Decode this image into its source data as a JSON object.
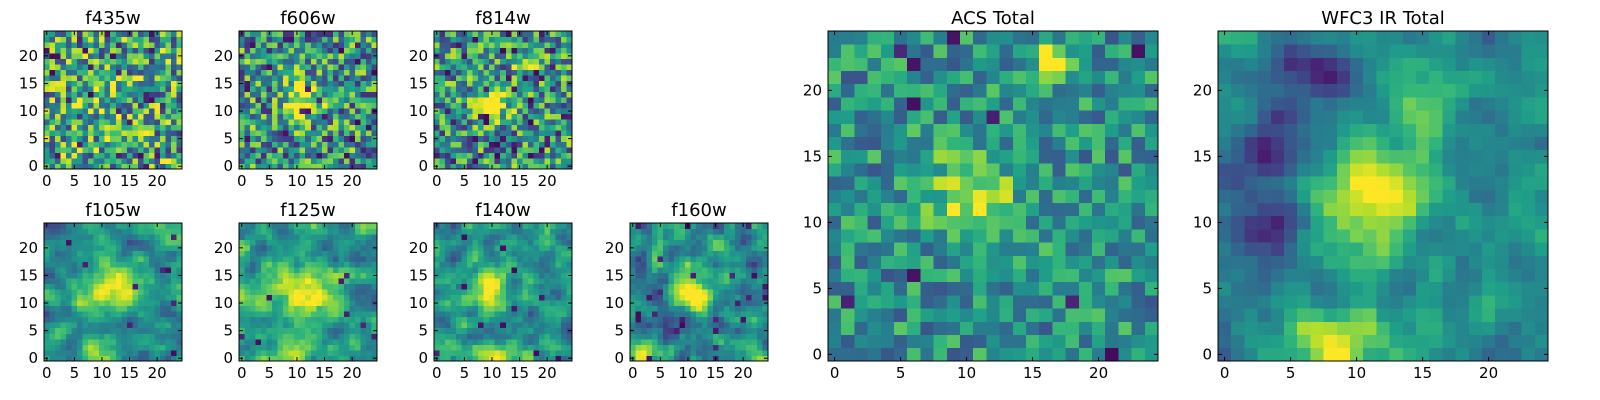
{
  "chart_data": [
    {
      "type": "heatmap",
      "title": "f435w",
      "xlim": [
        -0.5,
        24.5
      ],
      "ylim": [
        -0.5,
        24.5
      ],
      "xticks": [
        0,
        5,
        10,
        15,
        20
      ],
      "yticks": [
        0,
        5,
        10,
        15,
        20
      ],
      "colormap": "viridis",
      "grid_size": [
        25,
        25
      ],
      "noise": 0.42,
      "smooth": 0,
      "signal": 0.2,
      "hot_pixels": 0.04,
      "sources": [
        {
          "x": 11,
          "y": 12.5,
          "amp": 0.18,
          "sigma": 2.5
        }
      ],
      "base": 0.58
    },
    {
      "type": "heatmap",
      "title": "f606w",
      "xlim": [
        -0.5,
        24.5
      ],
      "ylim": [
        -0.5,
        24.5
      ],
      "xticks": [
        0,
        5,
        10,
        15,
        20
      ],
      "yticks": [
        0,
        5,
        10,
        15,
        20
      ],
      "colormap": "viridis",
      "grid_size": [
        25,
        25
      ],
      "noise": 0.4,
      "smooth": 0,
      "hot_pixels": 0.04,
      "sources": [
        {
          "x": 11,
          "y": 12,
          "amp": 0.55,
          "sigma": 2.2
        }
      ],
      "base": 0.52
    },
    {
      "type": "heatmap",
      "title": "f814w",
      "xlim": [
        -0.5,
        24.5
      ],
      "ylim": [
        -0.5,
        24.5
      ],
      "xticks": [
        0,
        5,
        10,
        15,
        20
      ],
      "yticks": [
        0,
        5,
        10,
        15,
        20
      ],
      "colormap": "viridis",
      "grid_size": [
        25,
        25
      ],
      "noise": 0.38,
      "smooth": 0,
      "hot_pixels": 0.05,
      "sources": [
        {
          "x": 10,
          "y": 11.5,
          "amp": 0.55,
          "sigma": 2.3
        },
        {
          "x": 16,
          "y": 19,
          "amp": 0.35,
          "sigma": 1.6
        }
      ],
      "base": 0.52
    },
    {
      "type": "heatmap",
      "title": "f105w",
      "xlim": [
        -0.5,
        24.5
      ],
      "ylim": [
        -0.5,
        24.5
      ],
      "xticks": [
        0,
        5,
        10,
        15,
        20
      ],
      "yticks": [
        0,
        5,
        10,
        15,
        20
      ],
      "colormap": "viridis",
      "grid_size": [
        25,
        25
      ],
      "noise": 0.25,
      "smooth": 1,
      "hot_pixels": 0.01,
      "sources": [
        {
          "x": 11,
          "y": 12,
          "amp": 0.5,
          "sigma": 3.5
        },
        {
          "x": 10,
          "y": 1,
          "amp": 0.3,
          "sigma": 2.5
        }
      ],
      "base": 0.5
    },
    {
      "type": "heatmap",
      "title": "f125w",
      "xlim": [
        -0.5,
        24.5
      ],
      "ylim": [
        -0.5,
        24.5
      ],
      "xticks": [
        0,
        5,
        10,
        15,
        20
      ],
      "yticks": [
        0,
        5,
        10,
        15,
        20
      ],
      "colormap": "viridis",
      "grid_size": [
        25,
        25
      ],
      "noise": 0.28,
      "smooth": 1,
      "hot_pixels": 0.01,
      "sources": [
        {
          "x": 11,
          "y": 12,
          "amp": 0.45,
          "sigma": 4.0
        },
        {
          "x": 9,
          "y": 1,
          "amp": 0.35,
          "sigma": 2.5
        }
      ],
      "base": 0.52
    },
    {
      "type": "heatmap",
      "title": "f140w",
      "xlim": [
        -0.5,
        24.5
      ],
      "ylim": [
        -0.5,
        24.5
      ],
      "xticks": [
        0,
        5,
        10,
        15,
        20
      ],
      "yticks": [
        0,
        5,
        10,
        15,
        20
      ],
      "colormap": "viridis",
      "grid_size": [
        25,
        25
      ],
      "noise": 0.3,
      "smooth": 1,
      "hot_pixels": 0.02,
      "sources": [
        {
          "x": 10,
          "y": 12.5,
          "amp": 0.5,
          "sigma": 3.2
        },
        {
          "x": 9,
          "y": 1,
          "amp": 0.35,
          "sigma": 2.5
        }
      ],
      "base": 0.48
    },
    {
      "type": "heatmap",
      "title": "f160w",
      "xlim": [
        -0.5,
        24.5
      ],
      "ylim": [
        -0.5,
        24.5
      ],
      "xticks": [
        0,
        5,
        10,
        15,
        20
      ],
      "yticks": [
        0,
        5,
        10,
        15,
        20
      ],
      "colormap": "viridis",
      "grid_size": [
        25,
        25
      ],
      "noise": 0.32,
      "smooth": 1,
      "hot_pixels": 0.03,
      "sources": [
        {
          "x": 11,
          "y": 12.5,
          "amp": 0.55,
          "sigma": 2.6
        },
        {
          "x": 3,
          "y": 1,
          "amp": 0.3,
          "sigma": 2
        }
      ],
      "base": 0.45
    },
    {
      "type": "heatmap",
      "title": "ACS Total",
      "xlim": [
        -0.5,
        24.5
      ],
      "ylim": [
        -0.5,
        24.5
      ],
      "xticks": [
        0,
        5,
        10,
        15,
        20
      ],
      "yticks": [
        0,
        5,
        10,
        15,
        20
      ],
      "colormap": "viridis",
      "grid_size": [
        25,
        25
      ],
      "noise": 0.24,
      "smooth": 0,
      "hot_pixels": 0.03,
      "sources": [
        {
          "x": 10.5,
          "y": 12,
          "amp": 0.42,
          "sigma": 2.4
        },
        {
          "x": 16.5,
          "y": 22.5,
          "amp": 0.55,
          "sigma": 0.9
        }
      ],
      "base": 0.5
    },
    {
      "type": "heatmap",
      "title": "WFC3 IR Total",
      "xlim": [
        -0.5,
        24.5
      ],
      "ylim": [
        -0.5,
        24.5
      ],
      "xticks": [
        0,
        5,
        10,
        15,
        20
      ],
      "yticks": [
        0,
        5,
        10,
        15,
        20
      ],
      "colormap": "viridis",
      "grid_size": [
        25,
        25
      ],
      "noise": 0.2,
      "smooth": 1,
      "hot_pixels": 0.0,
      "sources": [
        {
          "x": 11,
          "y": 12,
          "amp": 0.5,
          "sigma": 3.2
        },
        {
          "x": 9,
          "y": 0.5,
          "amp": 0.45,
          "sigma": 2.5
        },
        {
          "x": 14.5,
          "y": 19,
          "amp": 0.18,
          "sigma": 1.8
        }
      ],
      "sinks": [
        {
          "x": 6.5,
          "y": 21.5,
          "amp": 0.55,
          "sigma": 1.4
        },
        {
          "x": 4,
          "y": 15,
          "amp": 0.35,
          "sigma": 2.5
        },
        {
          "x": 3.5,
          "y": 10.5,
          "amp": 0.25,
          "sigma": 1.6
        }
      ],
      "base": 0.48
    }
  ]
}
